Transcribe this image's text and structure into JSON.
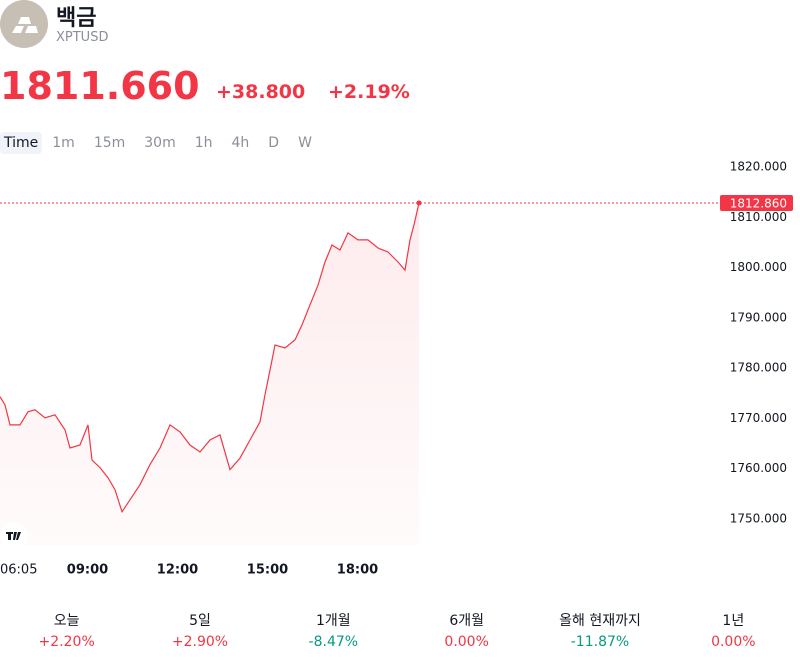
{
  "header": {
    "name": "백금",
    "symbol": "XPTUSD",
    "price": "1811.660",
    "change": "+38.800",
    "change_pct": "+2.19%"
  },
  "timeframes": [
    "Time",
    "1m",
    "15m",
    "30m",
    "1h",
    "4h",
    "D",
    "W"
  ],
  "chart_data": {
    "type": "line",
    "x": [
      365,
      375,
      385,
      405,
      421,
      435,
      455,
      475,
      495,
      505,
      525,
      541,
      549,
      565,
      581,
      595,
      609,
      625,
      645,
      665,
      685,
      705,
      725,
      745,
      765,
      785,
      805,
      825,
      845,
      865,
      885,
      895,
      905,
      915,
      935,
      955,
      969,
      985,
      1001,
      1015,
      1029,
      1045,
      1061,
      1081,
      1101,
      1121,
      1141,
      1161,
      1175,
      1185,
      1193,
      1203
    ],
    "series": [
      {
        "name": "XPTUSD",
        "color": "#f23645",
        "values": [
          1774.3,
          1772.7,
          1768.7,
          1768.7,
          1771.3,
          1771.7,
          1770.1,
          1770.7,
          1767.7,
          1764.1,
          1764.7,
          1768.7,
          1761.7,
          1760.2,
          1758.2,
          1755.8,
          1751.4,
          1753.8,
          1756.8,
          1760.8,
          1764.1,
          1768.7,
          1767.3,
          1764.7,
          1763.3,
          1765.7,
          1766.7,
          1759.8,
          1762.1,
          1765.7,
          1769.3,
          1774.7,
          1779.6,
          1784.6,
          1784.0,
          1785.6,
          1788.6,
          1792.6,
          1796.5,
          1801.1,
          1804.5,
          1803.5,
          1806.9,
          1805.5,
          1805.5,
          1803.9,
          1803.1,
          1801.1,
          1799.5,
          1805.5,
          1808.5,
          1812.86
        ]
      }
    ],
    "xlim": [
      365,
      1805
    ],
    "xticks": [
      {
        "value": 365,
        "label": "06:05"
      },
      {
        "value": 540,
        "label": "09:00"
      },
      {
        "value": 720,
        "label": "12:00"
      },
      {
        "value": 900,
        "label": "15:00"
      },
      {
        "value": 1080,
        "label": "18:00"
      }
    ],
    "ylim": [
      1744.8,
      1822.4
    ],
    "yticks": [
      {
        "value": 1750,
        "label": "1750.000"
      },
      {
        "value": 1760,
        "label": "1760.000"
      },
      {
        "value": 1770,
        "label": "1770.000"
      },
      {
        "value": 1780,
        "label": "1780.000"
      },
      {
        "value": 1790,
        "label": "1790.000"
      },
      {
        "value": 1800,
        "label": "1800.000"
      },
      {
        "value": 1810,
        "label": "1810.000"
      },
      {
        "value": 1820,
        "label": "1820.000"
      }
    ],
    "price_line": {
      "value": 1812.86,
      "label": "1812.860"
    }
  },
  "periods": [
    {
      "label": "오늘",
      "value": "+2.20%",
      "color": "#f23645"
    },
    {
      "label": "5일",
      "value": "+2.90%",
      "color": "#f23645"
    },
    {
      "label": "1개월",
      "value": "-8.47%",
      "color": "#089981"
    },
    {
      "label": "6개월",
      "value": "0.00%",
      "color": "#f23645"
    },
    {
      "label": "올해 현재까지",
      "value": "-11.87%",
      "color": "#089981"
    },
    {
      "label": "1년",
      "value": "0.00%",
      "color": "#f23645"
    }
  ]
}
